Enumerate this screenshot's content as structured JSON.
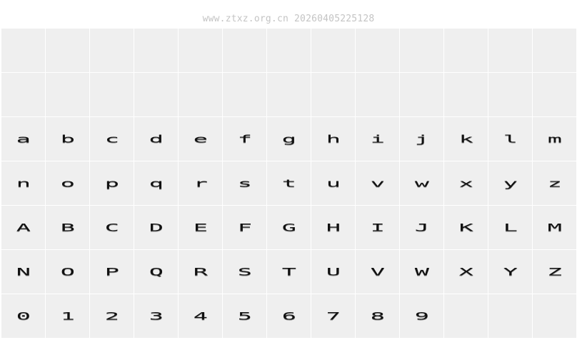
{
  "header": {
    "text": "www.ztxz.org.cn 20260405225128"
  },
  "grid": {
    "columns": 13,
    "rows": [
      [
        "",
        "",
        "",
        "",
        "",
        "",
        "",
        "",
        "",
        "",
        "",
        "",
        ""
      ],
      [
        "",
        "",
        "",
        "",
        "",
        "",
        "",
        "",
        "",
        "",
        "",
        "",
        ""
      ],
      [
        "a",
        "b",
        "c",
        "d",
        "e",
        "f",
        "g",
        "h",
        "i",
        "j",
        "k",
        "l",
        "m"
      ],
      [
        "n",
        "o",
        "p",
        "q",
        "r",
        "s",
        "t",
        "u",
        "v",
        "w",
        "x",
        "y",
        "z"
      ],
      [
        "A",
        "B",
        "C",
        "D",
        "E",
        "F",
        "G",
        "H",
        "I",
        "J",
        "K",
        "L",
        "M"
      ],
      [
        "N",
        "O",
        "P",
        "Q",
        "R",
        "S",
        "T",
        "U",
        "V",
        "W",
        "X",
        "Y",
        "Z"
      ],
      [
        "0",
        "1",
        "2",
        "3",
        "4",
        "5",
        "6",
        "7",
        "8",
        "9",
        "",
        "",
        ""
      ]
    ]
  },
  "colors": {
    "cell_bg": "#efefef",
    "grid_line": "#ffffff",
    "header_text": "#c4c4c4",
    "glyph": "#111111"
  }
}
